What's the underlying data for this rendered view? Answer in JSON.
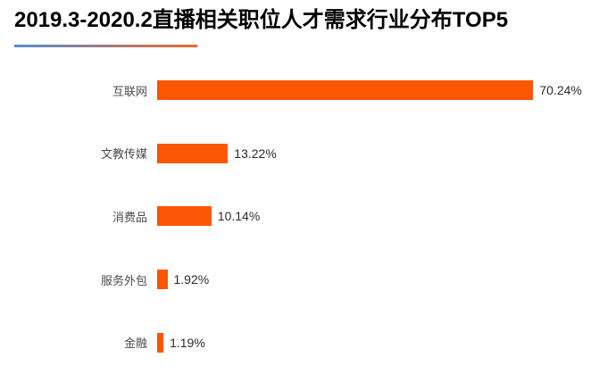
{
  "title": "2019.3-2020.2直播相关职位人才需求行业分布TOP5",
  "accent": {
    "underline_gradient_start": "#4E8FD6",
    "underline_gradient_end": "#F2682A",
    "bar_color": "#FC5604"
  },
  "chart_data": {
    "type": "bar",
    "orientation": "horizontal",
    "title": "2019.3-2020.2直播相关职位人才需求行业分布TOP5",
    "categories": [
      "互联网",
      "文教传媒",
      "消费品",
      "服务外包",
      "金融"
    ],
    "values": [
      70.24,
      13.22,
      10.14,
      1.92,
      1.19
    ],
    "value_labels": [
      "70.24%",
      "13.22%",
      "10.14%",
      "1.92%",
      "1.19%"
    ],
    "unit": "%",
    "xlim": [
      0,
      75
    ],
    "sort": "descending",
    "grid": false,
    "legend": false,
    "axis_lines": false,
    "bar_color": "#FC5604",
    "background": "#FFFFFF"
  }
}
